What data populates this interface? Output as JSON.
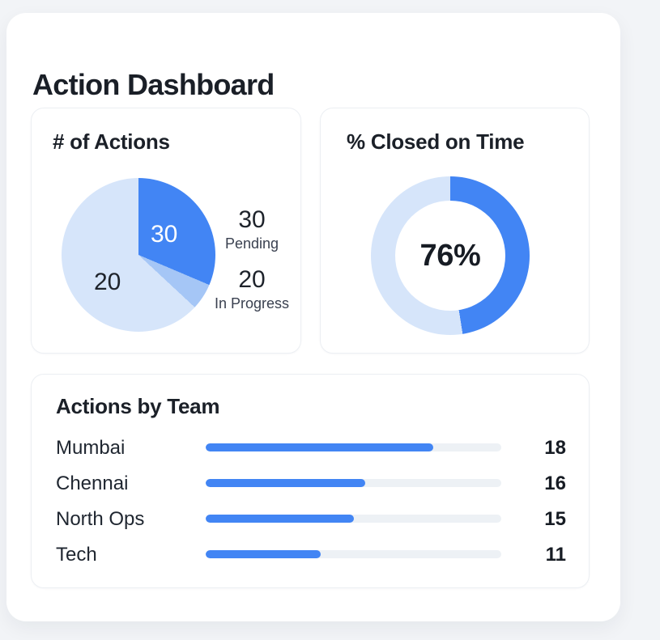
{
  "page": {
    "title": "Action Dashboard"
  },
  "colors": {
    "accent": "#4285F4",
    "accent_medium": "#A5C6F6",
    "accent_light": "#D6E5FA",
    "bar_track": "#EDF1F5",
    "text_dark": "#1B2028",
    "text_muted": "#3A4150",
    "page_background": "#F2F4F7",
    "card_background": "#FFFFFF"
  },
  "chart_data": [
    {
      "id": "actions-pie",
      "type": "pie",
      "title": "# of Actions",
      "slices": [
        {
          "label": "Pending",
          "value": 30,
          "slice_label": "30",
          "color": "#4285F4",
          "start_deg": 0,
          "end_deg": 113
        },
        {
          "label": "",
          "slice_label": "",
          "color": "#A5C6F6",
          "start_deg": 113,
          "end_deg": 133
        },
        {
          "label": "In Progress",
          "value": 20,
          "slice_label": "20",
          "color": "#D6E5FA",
          "start_deg": 133,
          "end_deg": 360
        }
      ],
      "legend_position": "right",
      "legend": [
        {
          "value": "30",
          "label": "Pending"
        },
        {
          "value": "20",
          "label": "In Progress"
        }
      ]
    },
    {
      "id": "closed-on-time-donut",
      "type": "donut",
      "title": "% Closed on Time",
      "value_percent": 76,
      "center_label": "76%",
      "visual_sweep_deg": 171,
      "color": "#4285F4",
      "track_color": "#D6E5FA"
    },
    {
      "id": "actions-by-team",
      "type": "bar",
      "orientation": "horizontal",
      "title": "Actions by Team",
      "categories": [
        "Mumbai",
        "Chennai",
        "North Ops",
        "Tech"
      ],
      "values": [
        18,
        16,
        15,
        11
      ],
      "bar_fill_percents": [
        77,
        54,
        50,
        39
      ],
      "bar_color": "#4285F4",
      "track_color": "#EDF1F5"
    }
  ]
}
